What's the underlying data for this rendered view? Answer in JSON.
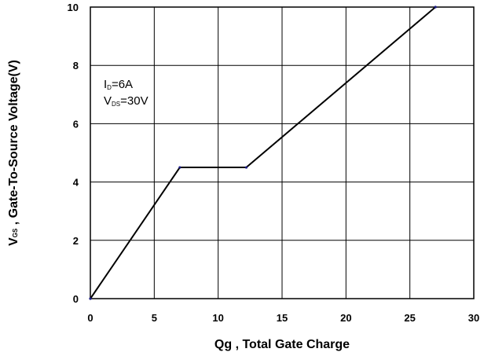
{
  "chart_data": {
    "type": "line",
    "xlabel": "Qg , Total Gate Charge",
    "ylabel": {
      "main": "V",
      "sub": "GS",
      "rest": " , Gate-To-Source Voltage(V)"
    },
    "xlim": [
      0,
      30
    ],
    "ylim": [
      0,
      10
    ],
    "xticks": [
      "0",
      "5",
      "10",
      "15",
      "20",
      "25",
      "30"
    ],
    "yticks": [
      "0",
      "2",
      "4",
      "6",
      "8",
      "10"
    ],
    "grid": true,
    "series": [
      {
        "x": [
          0,
          7,
          12.2,
          27
        ],
        "y": [
          0,
          4.5,
          4.5,
          10
        ],
        "color": "#000000"
      }
    ],
    "annotations": [
      {
        "main": "I",
        "sub": "D",
        "rest": "=6A"
      },
      {
        "main": "V",
        "sub": "DS",
        "rest": "=30V"
      }
    ]
  }
}
